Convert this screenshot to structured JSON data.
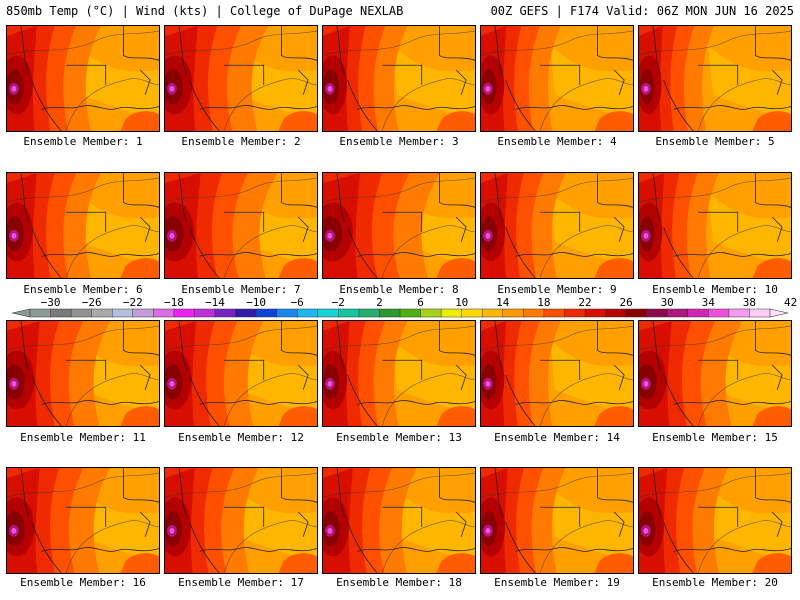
{
  "header": {
    "left": "850mb Temp (°C) | Wind (kts) | College of DuPage NEXLAB",
    "right": "00Z GEFS | F174 Valid: 06Z MON JUN 16 2025"
  },
  "colors": {
    "scale": [
      "#8c9c94",
      "#7a7a7a",
      "#929292",
      "#aaaaaa",
      "#b5bedd",
      "#c39ed8",
      "#da6ee6",
      "#ec22f2",
      "#bc32d8",
      "#7a23c4",
      "#311ba8",
      "#0c44d8",
      "#1b86ee",
      "#1cb6f0",
      "#19d4d8",
      "#17c6a0",
      "#24b070",
      "#2b9832",
      "#4fb010",
      "#a6d218",
      "#ecf000",
      "#ffd800",
      "#ffb800",
      "#ff9a00",
      "#ff7a00",
      "#ff5000",
      "#f02a00",
      "#d80e00",
      "#b40000",
      "#880000",
      "#8c0a4a",
      "#b01680",
      "#d424b4",
      "#ee50de",
      "#f79af0",
      "#fccff8"
    ],
    "left_arrow": "#8c9c94",
    "right_arrow": "#fde2fb"
  },
  "colorbar": {
    "labels": [
      "−30",
      "−26",
      "−22",
      "−18",
      "−14",
      "−10",
      "−6",
      "−2",
      "2",
      "6",
      "10",
      "14",
      "18",
      "22",
      "26",
      "30",
      "34",
      "38",
      "42"
    ]
  },
  "panels": [
    {
      "label": "Ensemble Member: 1"
    },
    {
      "label": "Ensemble Member: 2"
    },
    {
      "label": "Ensemble Member: 3"
    },
    {
      "label": "Ensemble Member: 4"
    },
    {
      "label": "Ensemble Member: 5"
    },
    {
      "label": "Ensemble Member: 6"
    },
    {
      "label": "Ensemble Member: 7"
    },
    {
      "label": "Ensemble Member: 8"
    },
    {
      "label": "Ensemble Member: 9"
    },
    {
      "label": "Ensemble Member: 10"
    },
    {
      "label": "Ensemble Member: 11"
    },
    {
      "label": "Ensemble Member: 12"
    },
    {
      "label": "Ensemble Member: 13"
    },
    {
      "label": "Ensemble Member: 14"
    },
    {
      "label": "Ensemble Member: 15"
    },
    {
      "label": "Ensemble Member: 16"
    },
    {
      "label": "Ensemble Member: 17"
    },
    {
      "label": "Ensemble Member: 18"
    },
    {
      "label": "Ensemble Member: 19"
    },
    {
      "label": "Ensemble Member: 20"
    }
  ]
}
